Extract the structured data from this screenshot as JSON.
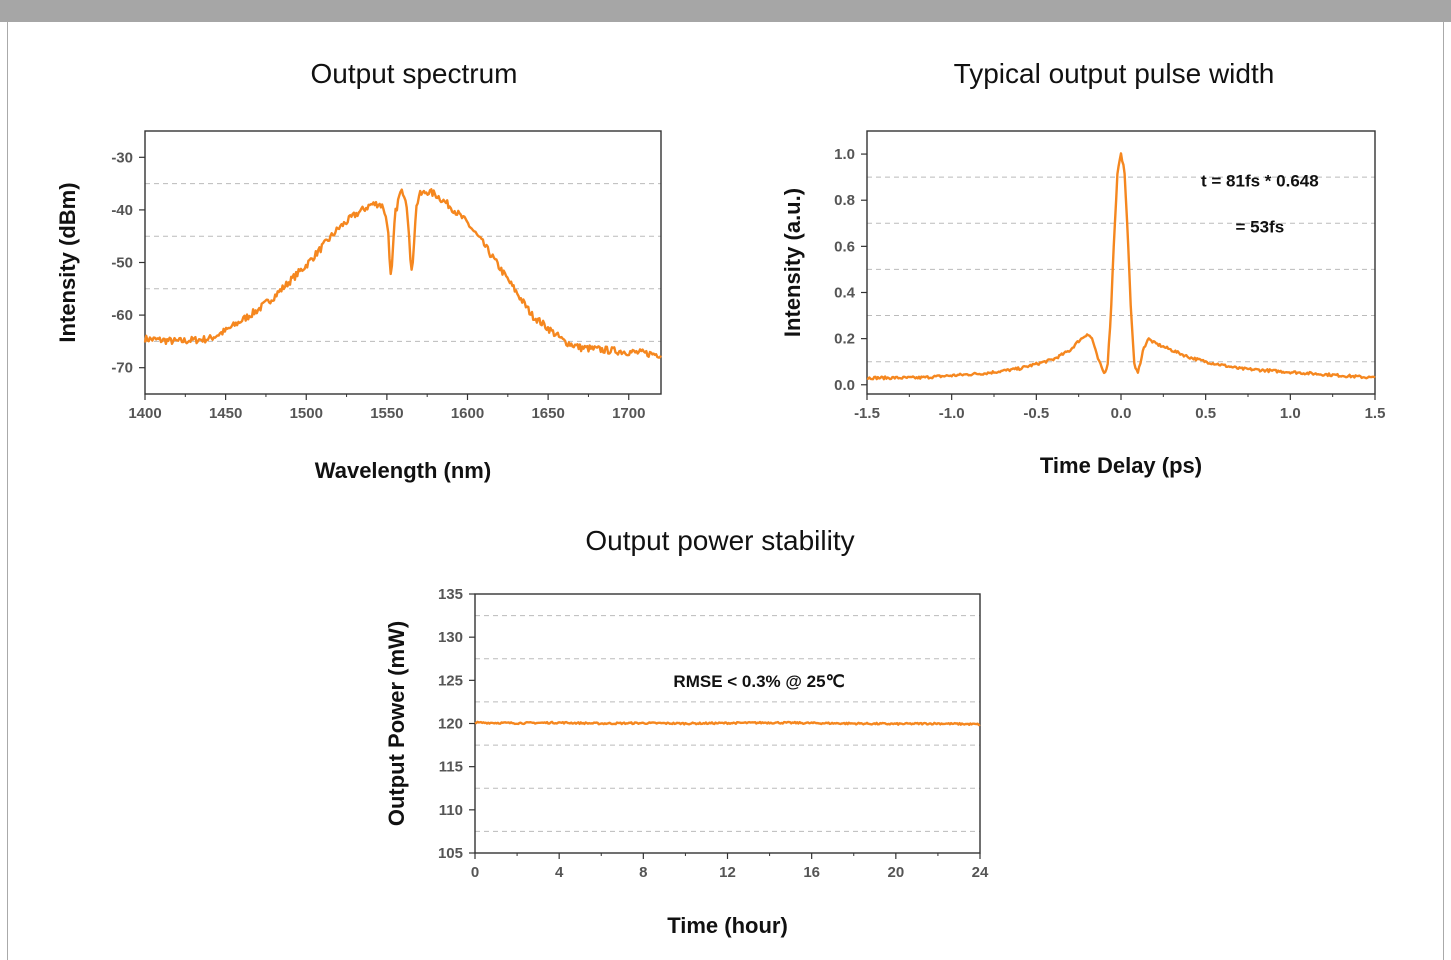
{
  "theme": {
    "header_bar": "#a6a6a6",
    "frame_border": "#aaaaaa",
    "series_color": "#f5871f",
    "grid_color": "#bbbbbb",
    "axis_color": "#333333"
  },
  "charts": {
    "spectrum_title": "Output spectrum",
    "pulse_title": "Typical output pulse width",
    "stability_title": "Output power stability"
  },
  "chart_data": [
    {
      "id": "spectrum",
      "type": "line",
      "title": "Output spectrum",
      "xlabel": "Wavelength (nm)",
      "ylabel": "Intensity (dBm)",
      "xlim": [
        1400,
        1720
      ],
      "ylim": [
        -75,
        -25
      ],
      "xticks": [
        1400,
        1450,
        1500,
        1550,
        1600,
        1650,
        1700
      ],
      "xtick_labels": [
        "1400",
        "1450",
        "1500",
        "1550",
        "1600",
        "1650",
        "1700"
      ],
      "yticks": [
        -30,
        -40,
        -50,
        -60,
        -70
      ],
      "ytick_labels": [
        "-30",
        "-40",
        "-50",
        "-60",
        "-70"
      ],
      "grid": "horizontal dashed",
      "annotations": [],
      "series": [
        {
          "color": "#f5871f",
          "x": [
            1400,
            1420,
            1440,
            1450,
            1460,
            1470,
            1480,
            1490,
            1500,
            1510,
            1520,
            1530,
            1540,
            1545,
            1548,
            1551,
            1552,
            1553,
            1555,
            1558,
            1560,
            1562,
            1564,
            1565,
            1566,
            1568,
            1570,
            1575,
            1580,
            1590,
            1600,
            1610,
            1620,
            1630,
            1640,
            1650,
            1660,
            1670,
            1680,
            1700,
            1720
          ],
          "y": [
            -64.5,
            -65,
            -64.5,
            -63,
            -61,
            -59,
            -56.5,
            -53.5,
            -50.5,
            -47,
            -43.5,
            -41,
            -39,
            -38.8,
            -39.5,
            -44,
            -53,
            -52,
            -41,
            -37,
            -36.5,
            -38,
            -45,
            -53,
            -50,
            -40,
            -37.2,
            -36.5,
            -37,
            -39.5,
            -42.5,
            -46.5,
            -51,
            -55.5,
            -60,
            -62.5,
            -65,
            -66.2,
            -66.5,
            -67,
            -67.5
          ],
          "noise": 0.7
        }
      ]
    },
    {
      "id": "pulse",
      "type": "line",
      "title": "Typical output pulse width",
      "xlabel": "Time Delay (ps)",
      "ylabel": "Intensity (a.u.)",
      "xlim": [
        -1.5,
        1.5
      ],
      "ylim": [
        -0.04,
        1.1
      ],
      "xticks": [
        -1.5,
        -1.0,
        -0.5,
        0.0,
        0.5,
        1.0,
        1.5
      ],
      "xtick_labels": [
        "-1.5",
        "-1.0",
        "-0.5",
        "0.0",
        "0.5",
        "1.0",
        "1.5"
      ],
      "yticks": [
        0.0,
        0.2,
        0.4,
        0.6,
        0.8,
        1.0
      ],
      "ytick_labels": [
        "0.0",
        "0.2",
        "0.4",
        "0.6",
        "0.8",
        "1.0"
      ],
      "grid": "horizontal dashed",
      "annotations": [
        {
          "text": "t = 81fs * 0.648",
          "x": 0.82,
          "y": 0.86
        },
        {
          "text": "= 53fs",
          "x": 0.82,
          "y": 0.66
        }
      ],
      "series": [
        {
          "color": "#f5871f",
          "x": [
            -1.5,
            -1.2,
            -1.0,
            -0.8,
            -0.6,
            -0.5,
            -0.4,
            -0.3,
            -0.25,
            -0.2,
            -0.17,
            -0.14,
            -0.1,
            -0.08,
            -0.06,
            -0.04,
            -0.02,
            0.0,
            0.02,
            0.04,
            0.06,
            0.08,
            0.1,
            0.13,
            0.16,
            0.2,
            0.3,
            0.4,
            0.5,
            0.7,
            0.9,
            1.1,
            1.3,
            1.5
          ],
          "y": [
            0.03,
            0.03,
            0.04,
            0.05,
            0.07,
            0.09,
            0.11,
            0.15,
            0.19,
            0.22,
            0.2,
            0.12,
            0.05,
            0.08,
            0.3,
            0.65,
            0.93,
            1.0,
            0.93,
            0.65,
            0.3,
            0.08,
            0.05,
            0.15,
            0.2,
            0.18,
            0.15,
            0.12,
            0.1,
            0.07,
            0.06,
            0.05,
            0.04,
            0.03
          ],
          "noise": 0.006
        }
      ]
    },
    {
      "id": "stability",
      "type": "line",
      "title": "Output power stability",
      "xlabel": "Time (hour)",
      "ylabel": "Output Power (mW)",
      "xlim": [
        0,
        24
      ],
      "ylim": [
        105,
        135
      ],
      "xticks": [
        0,
        4,
        8,
        12,
        16,
        20,
        24
      ],
      "xtick_labels": [
        "0",
        "4",
        "8",
        "12",
        "16",
        "20",
        "24"
      ],
      "yticks": [
        105,
        110,
        115,
        120,
        125,
        130,
        135
      ],
      "ytick_labels": [
        "105",
        "110",
        "115",
        "120",
        "125",
        "130",
        "135"
      ],
      "grid": "horizontal dashed",
      "annotations": [
        {
          "text": "RMSE < 0.3% @ 25℃",
          "x": 13.5,
          "y": 124.2
        }
      ],
      "series": [
        {
          "color": "#f5871f",
          "x": [
            0,
            2,
            4,
            6,
            8,
            10,
            12,
            14,
            16,
            18,
            20,
            22,
            24
          ],
          "y": [
            120.1,
            120.05,
            120.1,
            120.0,
            120.05,
            120.0,
            120.05,
            120.1,
            120.05,
            120.0,
            119.95,
            120.0,
            119.9
          ],
          "noise": 0.1
        }
      ]
    }
  ]
}
